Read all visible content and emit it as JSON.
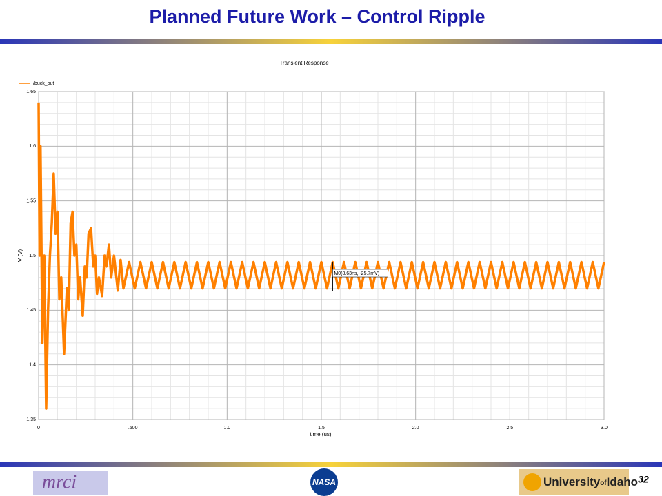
{
  "slide": {
    "title": "Planned Future Work – Control Ripple",
    "page_number": "32",
    "logos": {
      "left": "mrci",
      "center": "NASA",
      "right_a": "University",
      "right_b": "of",
      "right_c": "Idaho"
    }
  },
  "chart_data": {
    "type": "line",
    "title": "Transient Response",
    "x_label": "time (us)",
    "y_label": "V (V)",
    "xlim": [
      0,
      3.0
    ],
    "ylim": [
      1.35,
      1.65
    ],
    "xticks": [
      0,
      {
        "value": 0.5,
        "label": ".500"
      },
      {
        "value": 1,
        "label": "1.0"
      },
      1.5,
      {
        "value": 2,
        "label": "2.0"
      },
      2.5,
      {
        "value": 3,
        "label": "3.0"
      }
    ],
    "yticks": [
      1.35,
      1.4,
      1.45,
      1.5,
      1.55,
      1.6,
      1.65
    ],
    "grid": true,
    "legend": "top-left",
    "annotation": {
      "label": "M0(8.63ns, -25.7mV)",
      "x": 1.56
    },
    "x": [
      0,
      0.005,
      0.01,
      0.02,
      0.03,
      0.04,
      0.05,
      0.06,
      0.07,
      0.08,
      0.09,
      0.1,
      0.11,
      0.12,
      0.135,
      0.15,
      0.16,
      0.17,
      0.18,
      0.19,
      0.2,
      0.21,
      0.22,
      0.234,
      0.245,
      0.255,
      0.265,
      0.278,
      0.29,
      0.3,
      0.31,
      0.32,
      0.337,
      0.35,
      0.36,
      0.373,
      0.385,
      0.4,
      0.42,
      0.435,
      0.45,
      0.48,
      0.51,
      0.54,
      0.57,
      0.6,
      0.63,
      0.66,
      0.69,
      0.72,
      0.75,
      0.78,
      0.81,
      0.84,
      0.87,
      0.9,
      0.93,
      0.96,
      0.99,
      1.02,
      1.05,
      1.08,
      1.11,
      1.14,
      1.17,
      1.2,
      1.23,
      1.26,
      1.29,
      1.32,
      1.35,
      1.38,
      1.41,
      1.44,
      1.47,
      1.5,
      1.53,
      1.56,
      1.59,
      1.62,
      1.65,
      1.68,
      1.71,
      1.74,
      1.77,
      1.8,
      1.83,
      1.86,
      1.89,
      1.92,
      1.95,
      1.98,
      2.01,
      2.04,
      2.07,
      2.1,
      2.13,
      2.16,
      2.19,
      2.22,
      2.25,
      2.28,
      2.31,
      2.34,
      2.37,
      2.4,
      2.43,
      2.46,
      2.49,
      2.52,
      2.55,
      2.58,
      2.61,
      2.64,
      2.67,
      2.7,
      2.73,
      2.76,
      2.79,
      2.82,
      2.85,
      2.88,
      2.91,
      2.94,
      2.97,
      3.0
    ],
    "series": [
      {
        "name": "/buck_out",
        "color": "#ff8000",
        "values": [
          1.64,
          1.5,
          1.6,
          1.42,
          1.5,
          1.36,
          1.45,
          1.5,
          1.53,
          1.575,
          1.52,
          1.54,
          1.46,
          1.48,
          1.41,
          1.47,
          1.45,
          1.53,
          1.54,
          1.5,
          1.51,
          1.46,
          1.48,
          1.445,
          1.49,
          1.48,
          1.52,
          1.525,
          1.49,
          1.5,
          1.465,
          1.48,
          1.463,
          1.5,
          1.49,
          1.51,
          1.48,
          1.5,
          1.468,
          1.496,
          1.47,
          1.494,
          1.47,
          1.494,
          1.47,
          1.494,
          1.47,
          1.494,
          1.47,
          1.494,
          1.47,
          1.494,
          1.47,
          1.494,
          1.47,
          1.494,
          1.47,
          1.494,
          1.47,
          1.494,
          1.47,
          1.494,
          1.47,
          1.494,
          1.47,
          1.494,
          1.47,
          1.494,
          1.47,
          1.494,
          1.47,
          1.494,
          1.47,
          1.494,
          1.47,
          1.494,
          1.47,
          1.494,
          1.47,
          1.494,
          1.47,
          1.494,
          1.47,
          1.494,
          1.47,
          1.494,
          1.47,
          1.494,
          1.47,
          1.494,
          1.47,
          1.494,
          1.47,
          1.494,
          1.47,
          1.494,
          1.47,
          1.494,
          1.47,
          1.494,
          1.47,
          1.494,
          1.47,
          1.494,
          1.47,
          1.494,
          1.47,
          1.494,
          1.47,
          1.494,
          1.47,
          1.494,
          1.47,
          1.494,
          1.47,
          1.494,
          1.47,
          1.494,
          1.47,
          1.494,
          1.47,
          1.494,
          1.47,
          1.494,
          1.47,
          1.494
        ]
      }
    ]
  }
}
